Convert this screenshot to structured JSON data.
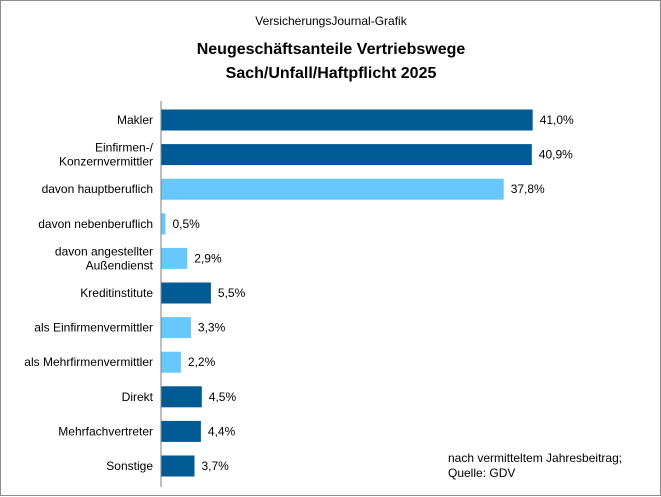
{
  "chart_data": {
    "type": "bar",
    "orientation": "horizontal",
    "supertitle": "VersicherungsJournal-Grafik",
    "title_lines": [
      "Neugeschäftsanteile Vertriebswege",
      "Sach/Unfall/Haftpflicht 2025"
    ],
    "note_lines": [
      "nach vermitteltem Jahresbeitrag;",
      "Quelle:  GDV"
    ],
    "grid": false,
    "legend": "none",
    "xlim": [
      0,
      45
    ],
    "colors": {
      "main": "#005a94",
      "sub": "#66c8ff"
    },
    "categories": [
      [
        "Makler"
      ],
      [
        "Einfirmen-/",
        "Konzernvermittler"
      ],
      [
        "davon hauptberuflich"
      ],
      [
        "davon nebenberuflich"
      ],
      [
        "davon angestellter",
        "Außendienst"
      ],
      [
        "Kreditinstitute"
      ],
      [
        "als Einfirmenvermittler"
      ],
      [
        "als Mehrfirmenvermittler"
      ],
      [
        "Direkt"
      ],
      [
        "Mehrfachvertreter"
      ],
      [
        "Sonstige"
      ]
    ],
    "values": [
      41.0,
      40.9,
      37.8,
      0.5,
      2.9,
      5.5,
      3.3,
      2.2,
      4.5,
      4.4,
      3.7
    ],
    "value_labels": [
      "41,0%",
      "40,9%",
      "37,8%",
      "0,5%",
      "2,9%",
      "5,5%",
      "3,3%",
      "2,2%",
      "4,5%",
      "4,4%",
      "3,7%"
    ],
    "bar_kind": [
      "main",
      "main",
      "sub",
      "sub",
      "sub",
      "main",
      "sub",
      "sub",
      "main",
      "main",
      "main"
    ]
  }
}
